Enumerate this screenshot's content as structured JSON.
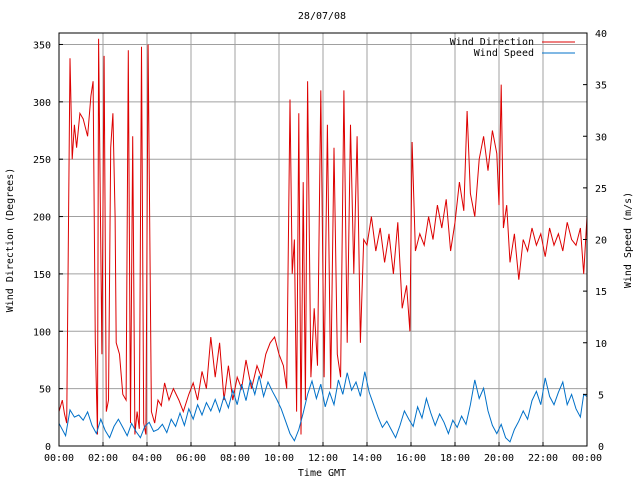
{
  "chart_data": {
    "type": "line",
    "title": "28/07/08",
    "xlabel": "Time GMT",
    "ylabel_left": "Wind Direction (Degrees)",
    "ylabel_right": "Wind Speed (m/s)",
    "x_ticks": [
      "00:00",
      "02:00",
      "04:00",
      "06:00",
      "08:00",
      "10:00",
      "12:00",
      "14:00",
      "16:00",
      "18:00",
      "20:00",
      "22:00",
      "00:00"
    ],
    "y_left_ticks": [
      "0",
      "50",
      "100",
      "150",
      "200",
      "250",
      "300",
      "350"
    ],
    "y_right_ticks": [
      "0",
      "5",
      "10",
      "15",
      "20",
      "25",
      "30",
      "35",
      "40"
    ],
    "xlim_hours": [
      0,
      24
    ],
    "ylim_left": [
      0,
      360
    ],
    "ylim_right": [
      0,
      40
    ],
    "grid": true,
    "legend_position": "top-right",
    "colors": {
      "direction": "#dd0000",
      "speed": "#0070c8",
      "grid": "#a0a0a0"
    },
    "series": [
      {
        "name": "Wind Direction",
        "axis": "left",
        "points": [
          [
            0.0,
            30
          ],
          [
            0.15,
            40
          ],
          [
            0.25,
            28
          ],
          [
            0.35,
            20
          ],
          [
            0.5,
            338
          ],
          [
            0.6,
            250
          ],
          [
            0.7,
            280
          ],
          [
            0.8,
            260
          ],
          [
            0.95,
            290
          ],
          [
            1.1,
            285
          ],
          [
            1.3,
            270
          ],
          [
            1.45,
            305
          ],
          [
            1.55,
            318
          ],
          [
            1.65,
            90
          ],
          [
            1.75,
            10
          ],
          [
            1.8,
            355
          ],
          [
            1.95,
            80
          ],
          [
            2.05,
            340
          ],
          [
            2.15,
            30
          ],
          [
            2.25,
            40
          ],
          [
            2.35,
            260
          ],
          [
            2.45,
            290
          ],
          [
            2.55,
            200
          ],
          [
            2.6,
            90
          ],
          [
            2.75,
            80
          ],
          [
            2.9,
            45
          ],
          [
            3.05,
            40
          ],
          [
            3.15,
            345
          ],
          [
            3.25,
            20
          ],
          [
            3.35,
            270
          ],
          [
            3.45,
            10
          ],
          [
            3.55,
            30
          ],
          [
            3.65,
            15
          ],
          [
            3.75,
            348
          ],
          [
            3.85,
            20
          ],
          [
            3.95,
            10
          ],
          [
            4.05,
            350
          ],
          [
            4.2,
            30
          ],
          [
            4.35,
            20
          ],
          [
            4.5,
            40
          ],
          [
            4.65,
            35
          ],
          [
            4.8,
            55
          ],
          [
            5.0,
            40
          ],
          [
            5.2,
            50
          ],
          [
            5.45,
            40
          ],
          [
            5.65,
            30
          ],
          [
            5.9,
            45
          ],
          [
            6.1,
            55
          ],
          [
            6.3,
            40
          ],
          [
            6.5,
            65
          ],
          [
            6.7,
            50
          ],
          [
            6.9,
            95
          ],
          [
            7.1,
            60
          ],
          [
            7.3,
            90
          ],
          [
            7.5,
            40
          ],
          [
            7.7,
            70
          ],
          [
            7.9,
            40
          ],
          [
            8.1,
            60
          ],
          [
            8.3,
            50
          ],
          [
            8.5,
            75
          ],
          [
            8.75,
            50
          ],
          [
            9.0,
            70
          ],
          [
            9.2,
            60
          ],
          [
            9.4,
            80
          ],
          [
            9.6,
            90
          ],
          [
            9.8,
            95
          ],
          [
            10.0,
            80
          ],
          [
            10.2,
            70
          ],
          [
            10.35,
            50
          ],
          [
            10.5,
            302
          ],
          [
            10.6,
            150
          ],
          [
            10.7,
            180
          ],
          [
            10.8,
            30
          ],
          [
            10.9,
            290
          ],
          [
            11.0,
            10
          ],
          [
            11.1,
            230
          ],
          [
            11.2,
            40
          ],
          [
            11.3,
            318
          ],
          [
            11.45,
            60
          ],
          [
            11.6,
            120
          ],
          [
            11.75,
            70
          ],
          [
            11.9,
            310
          ],
          [
            12.05,
            60
          ],
          [
            12.2,
            280
          ],
          [
            12.35,
            50
          ],
          [
            12.5,
            260
          ],
          [
            12.65,
            80
          ],
          [
            12.8,
            60
          ],
          [
            12.95,
            310
          ],
          [
            13.1,
            90
          ],
          [
            13.25,
            280
          ],
          [
            13.4,
            150
          ],
          [
            13.55,
            270
          ],
          [
            13.7,
            90
          ],
          [
            13.85,
            180
          ],
          [
            14.0,
            175
          ],
          [
            14.2,
            200
          ],
          [
            14.4,
            170
          ],
          [
            14.6,
            190
          ],
          [
            14.8,
            160
          ],
          [
            15.0,
            185
          ],
          [
            15.2,
            150
          ],
          [
            15.4,
            195
          ],
          [
            15.6,
            120
          ],
          [
            15.8,
            140
          ],
          [
            15.95,
            100
          ],
          [
            16.05,
            265
          ],
          [
            16.2,
            170
          ],
          [
            16.4,
            185
          ],
          [
            16.6,
            175
          ],
          [
            16.8,
            200
          ],
          [
            17.0,
            180
          ],
          [
            17.2,
            210
          ],
          [
            17.4,
            190
          ],
          [
            17.6,
            215
          ],
          [
            17.8,
            170
          ],
          [
            18.0,
            195
          ],
          [
            18.2,
            230
          ],
          [
            18.4,
            205
          ],
          [
            18.55,
            292
          ],
          [
            18.7,
            220
          ],
          [
            18.9,
            200
          ],
          [
            19.1,
            250
          ],
          [
            19.3,
            270
          ],
          [
            19.5,
            240
          ],
          [
            19.7,
            275
          ],
          [
            19.9,
            255
          ],
          [
            20.0,
            210
          ],
          [
            20.1,
            315
          ],
          [
            20.2,
            190
          ],
          [
            20.35,
            210
          ],
          [
            20.5,
            160
          ],
          [
            20.7,
            185
          ],
          [
            20.9,
            145
          ],
          [
            21.1,
            180
          ],
          [
            21.3,
            170
          ],
          [
            21.5,
            190
          ],
          [
            21.7,
            175
          ],
          [
            21.9,
            185
          ],
          [
            22.1,
            165
          ],
          [
            22.3,
            190
          ],
          [
            22.5,
            175
          ],
          [
            22.7,
            185
          ],
          [
            22.9,
            170
          ],
          [
            23.1,
            195
          ],
          [
            23.3,
            180
          ],
          [
            23.5,
            175
          ],
          [
            23.7,
            190
          ],
          [
            23.85,
            150
          ],
          [
            24.0,
            200
          ]
        ]
      },
      {
        "name": "Wind Speed",
        "axis": "right",
        "points": [
          [
            0.0,
            2.2
          ],
          [
            0.3,
            1.0
          ],
          [
            0.5,
            3.5
          ],
          [
            0.7,
            2.8
          ],
          [
            0.9,
            3.0
          ],
          [
            1.1,
            2.5
          ],
          [
            1.3,
            3.3
          ],
          [
            1.5,
            2.0
          ],
          [
            1.7,
            1.2
          ],
          [
            1.9,
            2.6
          ],
          [
            2.1,
            1.5
          ],
          [
            2.3,
            0.8
          ],
          [
            2.5,
            1.9
          ],
          [
            2.7,
            2.6
          ],
          [
            2.9,
            1.8
          ],
          [
            3.1,
            1.0
          ],
          [
            3.3,
            2.2
          ],
          [
            3.5,
            1.4
          ],
          [
            3.7,
            0.8
          ],
          [
            3.9,
            1.9
          ],
          [
            4.1,
            2.3
          ],
          [
            4.3,
            1.4
          ],
          [
            4.5,
            1.6
          ],
          [
            4.7,
            2.1
          ],
          [
            4.9,
            1.3
          ],
          [
            5.1,
            2.6
          ],
          [
            5.3,
            1.9
          ],
          [
            5.5,
            3.2
          ],
          [
            5.7,
            2.0
          ],
          [
            5.9,
            3.6
          ],
          [
            6.1,
            2.6
          ],
          [
            6.3,
            4.0
          ],
          [
            6.5,
            3.0
          ],
          [
            6.7,
            4.2
          ],
          [
            6.9,
            3.4
          ],
          [
            7.1,
            4.5
          ],
          [
            7.3,
            3.3
          ],
          [
            7.5,
            4.8
          ],
          [
            7.7,
            3.7
          ],
          [
            7.9,
            5.4
          ],
          [
            8.1,
            4.0
          ],
          [
            8.3,
            6.0
          ],
          [
            8.5,
            4.4
          ],
          [
            8.7,
            6.4
          ],
          [
            8.9,
            5.0
          ],
          [
            9.1,
            6.8
          ],
          [
            9.3,
            4.8
          ],
          [
            9.5,
            6.2
          ],
          [
            9.7,
            5.3
          ],
          [
            9.9,
            4.5
          ],
          [
            10.1,
            3.6
          ],
          [
            10.3,
            2.4
          ],
          [
            10.5,
            1.2
          ],
          [
            10.7,
            0.5
          ],
          [
            10.9,
            1.6
          ],
          [
            11.1,
            3.2
          ],
          [
            11.3,
            5.0
          ],
          [
            11.5,
            6.3
          ],
          [
            11.7,
            4.6
          ],
          [
            11.9,
            6.0
          ],
          [
            12.1,
            3.8
          ],
          [
            12.3,
            5.2
          ],
          [
            12.5,
            4.0
          ],
          [
            12.7,
            6.4
          ],
          [
            12.9,
            5.0
          ],
          [
            13.1,
            7.1
          ],
          [
            13.3,
            5.4
          ],
          [
            13.5,
            6.2
          ],
          [
            13.7,
            4.8
          ],
          [
            13.9,
            7.2
          ],
          [
            14.1,
            5.2
          ],
          [
            14.3,
            4.0
          ],
          [
            14.5,
            2.8
          ],
          [
            14.7,
            1.8
          ],
          [
            14.9,
            2.4
          ],
          [
            15.1,
            1.6
          ],
          [
            15.3,
            0.8
          ],
          [
            15.5,
            2.0
          ],
          [
            15.7,
            3.4
          ],
          [
            15.9,
            2.6
          ],
          [
            16.1,
            1.9
          ],
          [
            16.3,
            3.8
          ],
          [
            16.5,
            2.7
          ],
          [
            16.7,
            4.6
          ],
          [
            16.9,
            3.2
          ],
          [
            17.1,
            2.0
          ],
          [
            17.3,
            3.1
          ],
          [
            17.5,
            2.3
          ],
          [
            17.7,
            1.2
          ],
          [
            17.9,
            2.5
          ],
          [
            18.1,
            1.8
          ],
          [
            18.3,
            2.9
          ],
          [
            18.5,
            2.1
          ],
          [
            18.7,
            4.0
          ],
          [
            18.9,
            6.4
          ],
          [
            19.1,
            4.6
          ],
          [
            19.3,
            5.6
          ],
          [
            19.5,
            3.4
          ],
          [
            19.7,
            2.0
          ],
          [
            19.9,
            1.2
          ],
          [
            20.1,
            2.1
          ],
          [
            20.3,
            0.8
          ],
          [
            20.5,
            0.4
          ],
          [
            20.7,
            1.6
          ],
          [
            20.9,
            2.4
          ],
          [
            21.1,
            3.4
          ],
          [
            21.3,
            2.6
          ],
          [
            21.5,
            4.4
          ],
          [
            21.7,
            5.3
          ],
          [
            21.9,
            4.0
          ],
          [
            22.1,
            6.6
          ],
          [
            22.3,
            4.8
          ],
          [
            22.5,
            4.0
          ],
          [
            22.7,
            5.2
          ],
          [
            22.9,
            6.2
          ],
          [
            23.1,
            4.0
          ],
          [
            23.3,
            5.0
          ],
          [
            23.5,
            3.6
          ],
          [
            23.7,
            2.8
          ],
          [
            23.85,
            5.0
          ],
          [
            24.0,
            4.8
          ]
        ]
      }
    ]
  }
}
